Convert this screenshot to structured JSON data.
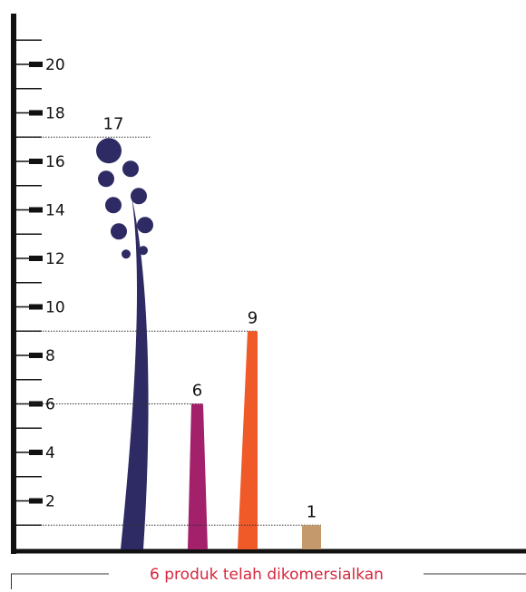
{
  "chart_data": {
    "type": "bar",
    "values": [
      17,
      6,
      9,
      1
    ],
    "colors": [
      "#2e2a63",
      "#a3206a",
      "#f05a28",
      "#c49a6c"
    ],
    "ylim": [
      0,
      22
    ],
    "yticks": [
      2,
      4,
      6,
      8,
      10,
      12,
      14,
      16,
      18,
      20
    ],
    "minor_yticks": [
      1,
      3,
      5,
      7,
      9,
      11,
      13,
      15,
      17,
      19,
      21
    ],
    "caption": "6 produk telah dikomersialkan"
  }
}
